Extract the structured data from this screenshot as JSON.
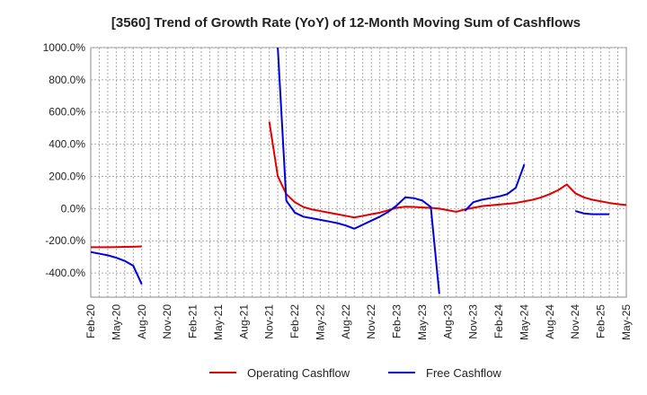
{
  "chart_data": {
    "type": "line",
    "title": "[3560]  Trend of Growth Rate (YoY) of 12-Month Moving Sum of Cashflows",
    "xlabel": "",
    "ylabel": "",
    "ylim": [
      -550,
      1000
    ],
    "y_ticks": [
      {
        "value": 1000,
        "label": "1000.0%"
      },
      {
        "value": 800,
        "label": "800.0%"
      },
      {
        "value": 600,
        "label": "600.0%"
      },
      {
        "value": 400,
        "label": "400.0%"
      },
      {
        "value": 200,
        "label": "200.0%"
      },
      {
        "value": 0,
        "label": "0.0%"
      },
      {
        "value": -200,
        "label": "-200.0%"
      },
      {
        "value": -400,
        "label": "-400.0%"
      }
    ],
    "x_ticks": [
      "Feb-20",
      "May-20",
      "Aug-20",
      "Nov-20",
      "Feb-21",
      "May-21",
      "Aug-21",
      "Nov-21",
      "Feb-22",
      "May-22",
      "Aug-22",
      "Nov-22",
      "Feb-23",
      "May-23",
      "Aug-23",
      "Nov-23",
      "Feb-24",
      "May-24",
      "Aug-24",
      "Nov-24",
      "Feb-25",
      "May-25"
    ],
    "x_start": "Feb-20",
    "grid": true,
    "legend_position": "bottom",
    "series": [
      {
        "name": "Operating Cashflow",
        "color": "#e00000",
        "values": [
          -240,
          -240,
          -240,
          -239,
          -238,
          -237,
          -235,
          null,
          null,
          null,
          null,
          null,
          null,
          null,
          null,
          null,
          null,
          null,
          null,
          null,
          null,
          540,
          200,
          90,
          40,
          10,
          -5,
          -15,
          -25,
          -35,
          -45,
          -55,
          -45,
          -35,
          -25,
          -10,
          5,
          12,
          10,
          7,
          5,
          0,
          -10,
          -20,
          -5,
          5,
          15,
          20,
          25,
          30,
          35,
          45,
          55,
          70,
          90,
          115,
          150,
          95,
          70,
          55,
          45,
          35,
          28,
          22
        ]
      },
      {
        "name": "Free Cashflow",
        "color": "#0000dd",
        "values": [
          -270,
          -280,
          -290,
          -305,
          -325,
          -355,
          -470,
          null,
          null,
          null,
          null,
          null,
          null,
          null,
          null,
          null,
          null,
          null,
          null,
          null,
          null,
          null,
          1000,
          50,
          -25,
          -50,
          -60,
          -70,
          -80,
          -90,
          -105,
          -125,
          -100,
          -75,
          -50,
          -20,
          20,
          70,
          65,
          50,
          10,
          -530,
          null,
          null,
          -15,
          40,
          55,
          65,
          75,
          90,
          130,
          275,
          null,
          null,
          null,
          null,
          null,
          -15,
          -30,
          -35,
          -35,
          -35
        ]
      }
    ]
  }
}
